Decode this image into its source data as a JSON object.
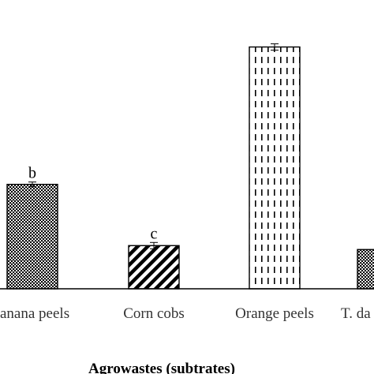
{
  "chart_data": {
    "type": "bar",
    "categories": [
      "Banana peels",
      "Corn cobs",
      "Orange peels",
      "T. daniellii"
    ],
    "tick_labels": [
      "anana peels",
      "Corn cobs",
      "Orange peels",
      "T. da"
    ],
    "values": [
      133,
      55,
      308,
      50
    ],
    "errors": [
      2,
      3,
      3,
      2
    ],
    "significance_labels": [
      "b",
      "c",
      "",
      ""
    ],
    "patterns": [
      "dots",
      "diagonal-hatch",
      "dashes",
      "dots"
    ],
    "xlabel": "Agrowastes (subtrates)",
    "ylabel": "",
    "title": "",
    "ylim": [
      0,
      330
    ],
    "grid": false,
    "legend": "none"
  }
}
